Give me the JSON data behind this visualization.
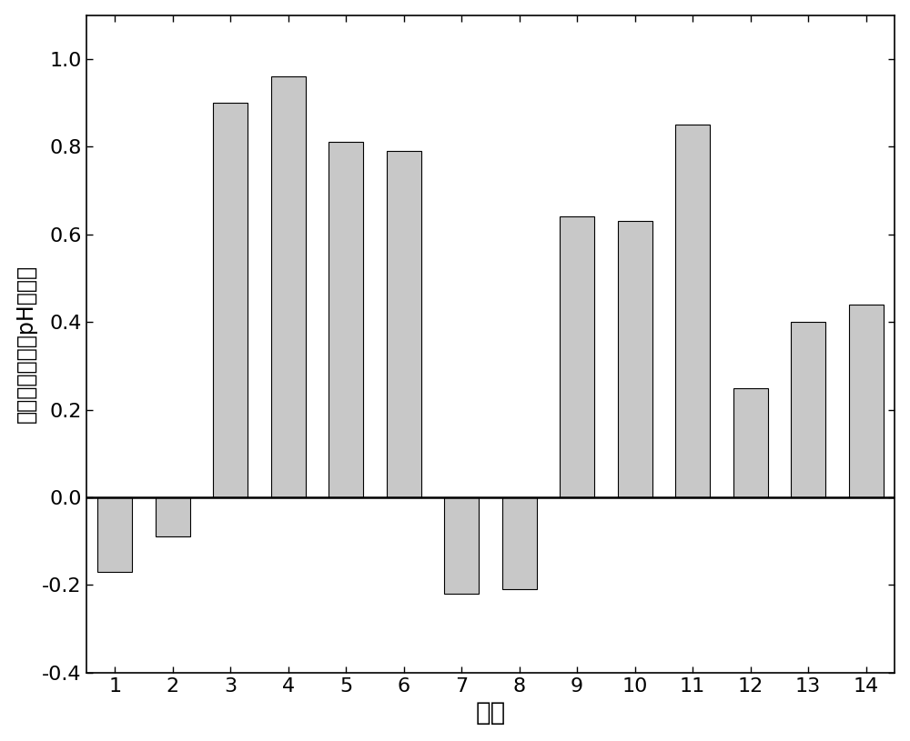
{
  "categories": [
    1,
    2,
    3,
    4,
    5,
    6,
    7,
    8,
    9,
    10,
    11,
    12,
    13,
    14
  ],
  "values": [
    -0.17,
    -0.09,
    0.9,
    0.96,
    0.81,
    0.79,
    -0.22,
    -0.21,
    0.64,
    0.63,
    0.85,
    0.25,
    0.4,
    0.44
  ],
  "bar_color": "#c8c8c8",
  "bar_edge_color": "#000000",
  "bar_edge_width": 0.8,
  "xlabel": "处理",
  "ylabel": "修复后各处理组pH升高値",
  "ylim": [
    -0.4,
    1.1
  ],
  "yticks": [
    -0.4,
    -0.2,
    0.0,
    0.2,
    0.4,
    0.6,
    0.8,
    1.0
  ],
  "xlabel_fontsize": 20,
  "ylabel_fontsize": 17,
  "tick_fontsize": 16,
  "background_color": "#ffffff",
  "bar_width": 0.6
}
